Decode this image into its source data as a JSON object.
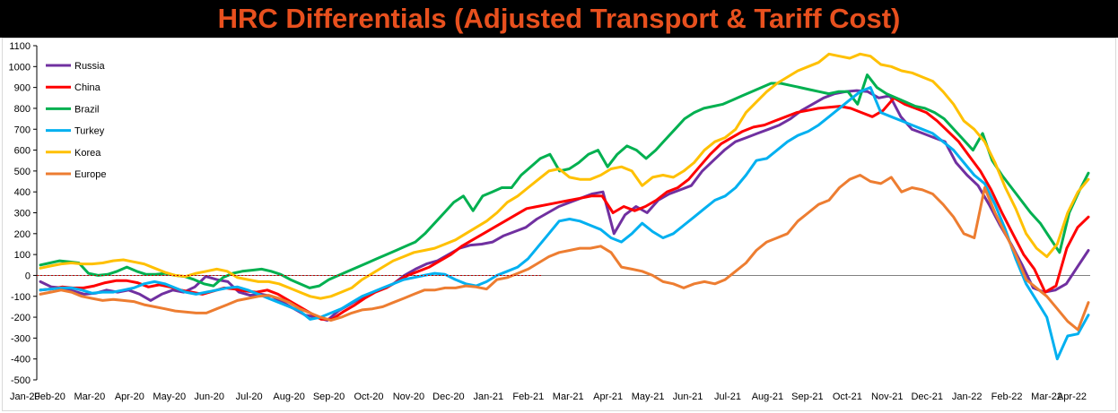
{
  "header": {
    "title": "HRC Differentials (Adjusted Transport & Tariff Cost)"
  },
  "colors": {
    "title": "#e8501e",
    "title_bg": "#000000",
    "zero_line": "#c00000"
  },
  "chart_data": {
    "type": "line",
    "title": "HRC Differentials (Adjusted Transport & Tariff Cost)",
    "xlabel": "",
    "ylabel": "",
    "ylim": [
      -500,
      1100
    ],
    "yticks": [
      -500,
      -400,
      -300,
      -200,
      -100,
      0,
      100,
      200,
      300,
      400,
      500,
      600,
      700,
      800,
      900,
      1000,
      1100
    ],
    "x_tick_labels": [
      "Jan-20",
      "Feb-20",
      "Mar-20",
      "Apr-20",
      "May-20",
      "Jun-20",
      "Jul-20",
      "Aug-20",
      "Sep-20",
      "Oct-20",
      "Nov-20",
      "Dec-20",
      "Jan-21",
      "Feb-21",
      "Mar-21",
      "Apr-21",
      "May-21",
      "Jun-21",
      "Jul-21",
      "Aug-21",
      "Sep-21",
      "Oct-21",
      "Nov-21",
      "Dec-21",
      "Jan-22",
      "Feb-22",
      "Mar-22",
      "Apr-22"
    ],
    "grid": false,
    "legend_position": "top-left",
    "series": [
      {
        "name": "Russia",
        "color": "#7030a0",
        "values": [
          -30,
          -55,
          -60,
          -75,
          -90,
          -85,
          -70,
          -80,
          -70,
          -90,
          -120,
          -90,
          -70,
          -80,
          -55,
          -5,
          -20,
          -30,
          -80,
          -95,
          -90,
          -100,
          -130,
          -160,
          -190,
          -200,
          -215,
          -170,
          -140,
          -110,
          -85,
          -65,
          -40,
          0,
          30,
          55,
          70,
          100,
          130,
          145,
          150,
          160,
          190,
          210,
          230,
          270,
          300,
          330,
          350,
          370,
          390,
          400,
          200,
          290,
          330,
          300,
          360,
          390,
          410,
          430,
          500,
          550,
          600,
          640,
          660,
          680,
          700,
          720,
          750,
          790,
          820,
          850,
          870,
          880,
          885,
          880,
          850,
          860,
          760,
          700,
          680,
          660,
          640,
          540,
          480,
          430,
          340,
          240,
          150,
          50,
          -60,
          -80,
          -70,
          -40,
          40,
          120
        ]
      },
      {
        "name": "China",
        "color": "#ff0000",
        "values": [
          -70,
          -65,
          -55,
          -60,
          -60,
          -50,
          -35,
          -25,
          -25,
          -35,
          -55,
          -45,
          -55,
          -70,
          -80,
          -90,
          -75,
          -60,
          -65,
          -75,
          -80,
          -70,
          -90,
          -120,
          -150,
          -180,
          -210,
          -210,
          -175,
          -145,
          -110,
          -80,
          -60,
          -30,
          0,
          20,
          40,
          70,
          100,
          140,
          170,
          200,
          230,
          260,
          290,
          320,
          330,
          340,
          350,
          360,
          370,
          380,
          380,
          300,
          330,
          310,
          330,
          360,
          400,
          420,
          460,
          520,
          580,
          630,
          660,
          690,
          710,
          720,
          740,
          760,
          780,
          790,
          800,
          805,
          810,
          800,
          780,
          760,
          790,
          850,
          820,
          800,
          780,
          740,
          690,
          640,
          570,
          500,
          410,
          300,
          200,
          100,
          30,
          -80,
          -50,
          130,
          230,
          280
        ]
      },
      {
        "name": "Brazil",
        "color": "#00b050",
        "values": [
          50,
          60,
          70,
          65,
          60,
          10,
          0,
          5,
          20,
          40,
          20,
          5,
          5,
          10,
          0,
          -5,
          -20,
          -40,
          -50,
          -10,
          10,
          20,
          25,
          30,
          20,
          5,
          -20,
          -40,
          -60,
          -50,
          -20,
          0,
          20,
          40,
          60,
          80,
          100,
          120,
          140,
          160,
          200,
          250,
          300,
          350,
          380,
          310,
          380,
          400,
          420,
          420,
          480,
          520,
          560,
          580,
          500,
          510,
          540,
          580,
          600,
          520,
          580,
          620,
          600,
          560,
          600,
          650,
          700,
          750,
          780,
          800,
          810,
          820,
          840,
          860,
          880,
          900,
          920,
          920,
          910,
          900,
          890,
          880,
          870,
          880,
          880,
          820,
          960,
          900,
          870,
          850,
          830,
          810,
          800,
          780,
          750,
          700,
          650,
          600,
          680,
          550,
          480,
          420,
          360,
          300,
          250,
          180,
          110,
          300,
          400,
          490
        ]
      },
      {
        "name": "Turkey",
        "color": "#00b0f0",
        "values": [
          -70,
          -65,
          -60,
          -60,
          -70,
          -85,
          -80,
          -80,
          -70,
          -60,
          -40,
          -30,
          -40,
          -60,
          -80,
          -90,
          -80,
          -70,
          -60,
          -55,
          -70,
          -90,
          -110,
          -130,
          -150,
          -170,
          -210,
          -200,
          -180,
          -160,
          -130,
          -100,
          -80,
          -60,
          -40,
          -20,
          -10,
          0,
          10,
          5,
          -20,
          -40,
          -50,
          -30,
          0,
          20,
          40,
          80,
          140,
          200,
          260,
          270,
          260,
          240,
          220,
          180,
          160,
          200,
          250,
          210,
          180,
          200,
          240,
          280,
          320,
          360,
          380,
          420,
          480,
          550,
          560,
          600,
          640,
          670,
          690,
          720,
          760,
          800,
          840,
          880,
          900,
          780,
          760,
          740,
          720,
          700,
          680,
          640,
          600,
          540,
          480,
          440,
          340,
          220,
          80,
          -40,
          -120,
          -200,
          -400,
          -290,
          -280,
          -190
        ]
      },
      {
        "name": "Korea",
        "color": "#ffc000",
        "values": [
          35,
          45,
          55,
          60,
          55,
          55,
          60,
          70,
          75,
          65,
          55,
          35,
          15,
          0,
          -5,
          10,
          20,
          30,
          20,
          -10,
          -20,
          -30,
          -30,
          -40,
          -60,
          -80,
          -100,
          -110,
          -100,
          -80,
          -60,
          -20,
          10,
          40,
          70,
          90,
          110,
          120,
          130,
          150,
          170,
          200,
          230,
          260,
          300,
          350,
          380,
          420,
          460,
          500,
          510,
          470,
          460,
          460,
          480,
          510,
          520,
          500,
          430,
          470,
          480,
          470,
          500,
          540,
          600,
          640,
          660,
          700,
          780,
          830,
          880,
          920,
          950,
          980,
          1000,
          1020,
          1060,
          1050,
          1040,
          1060,
          1050,
          1010,
          1000,
          980,
          970,
          950,
          930,
          880,
          820,
          740,
          700,
          640,
          540,
          420,
          320,
          200,
          130,
          90,
          150,
          300,
          400,
          460
        ]
      },
      {
        "name": "Europe",
        "color": "#ed7d31",
        "values": [
          -90,
          -80,
          -70,
          -80,
          -100,
          -110,
          -120,
          -115,
          -120,
          -125,
          -140,
          -150,
          -160,
          -170,
          -175,
          -180,
          -180,
          -160,
          -140,
          -120,
          -110,
          -100,
          -95,
          -110,
          -130,
          -160,
          -180,
          -200,
          -215,
          -200,
          -180,
          -165,
          -160,
          -150,
          -130,
          -110,
          -90,
          -70,
          -70,
          -60,
          -60,
          -50,
          -55,
          -65,
          -20,
          -10,
          10,
          30,
          60,
          90,
          110,
          120,
          130,
          130,
          140,
          110,
          40,
          30,
          20,
          0,
          -30,
          -40,
          -60,
          -40,
          -30,
          -40,
          -20,
          20,
          60,
          120,
          160,
          180,
          200,
          260,
          300,
          340,
          360,
          420,
          460,
          480,
          450,
          440,
          470,
          400,
          420,
          410,
          390,
          340,
          280,
          200,
          180,
          420,
          300,
          200,
          100,
          -20,
          -60,
          -100,
          -160,
          -220,
          -260,
          -130
        ]
      }
    ]
  }
}
